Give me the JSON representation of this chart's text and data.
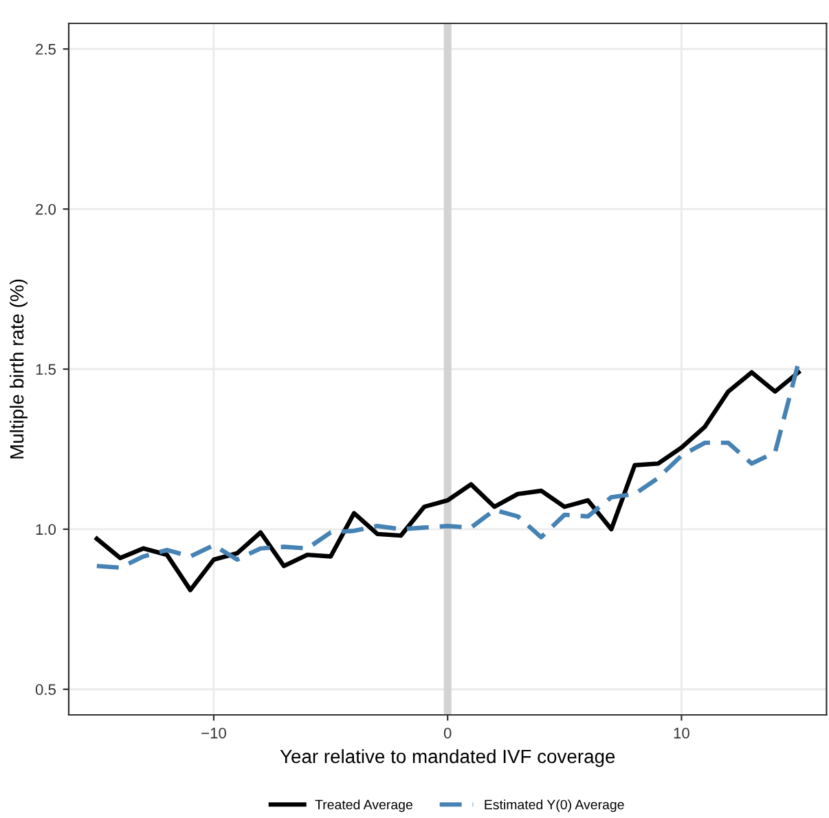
{
  "chart_data": {
    "type": "line",
    "xlabel": "Year relative to mandated IVF coverage",
    "ylabel": "Multiple birth rate (%)",
    "x": [
      -15,
      -14,
      -13,
      -12,
      -11,
      -10,
      -9,
      -8,
      -7,
      -6,
      -5,
      -4,
      -3,
      -2,
      -1,
      0,
      1,
      2,
      3,
      4,
      5,
      6,
      7,
      8,
      9,
      10,
      11,
      12,
      13,
      14,
      15
    ],
    "series": [
      {
        "name": "Treated Average",
        "color": "#000000",
        "line_style": "solid",
        "values": [
          0.97,
          0.91,
          0.94,
          0.92,
          0.81,
          0.905,
          0.925,
          0.99,
          0.885,
          0.92,
          0.915,
          1.05,
          0.985,
          0.98,
          1.07,
          1.09,
          1.14,
          1.07,
          1.11,
          1.12,
          1.07,
          1.09,
          1.0,
          1.2,
          1.205,
          1.255,
          1.32,
          1.43,
          1.49,
          1.43,
          1.49
        ]
      },
      {
        "name": "Estimated Y(0) Average",
        "color": "#4682b4",
        "line_style": "dashed",
        "values": [
          0.885,
          0.88,
          0.915,
          0.935,
          0.915,
          0.95,
          0.905,
          0.94,
          0.945,
          0.94,
          0.99,
          0.995,
          1.01,
          1.0,
          1.005,
          1.01,
          1.005,
          1.06,
          1.04,
          0.975,
          1.045,
          1.04,
          1.1,
          1.11,
          1.16,
          1.23,
          1.27,
          1.27,
          1.205,
          1.24,
          1.52
        ]
      }
    ],
    "xlim": [
      -16.2,
      16.2
    ],
    "xticks": [
      {
        "value": -10,
        "label": "−10"
      },
      {
        "value": 0,
        "label": "0"
      },
      {
        "value": 10,
        "label": "10"
      }
    ],
    "ylim": [
      0.42,
      2.58
    ],
    "yticks": [
      {
        "value": 0.5,
        "label": "0.5"
      },
      {
        "value": 1.0,
        "label": "1.0"
      },
      {
        "value": 1.5,
        "label": "1.5"
      },
      {
        "value": 2.0,
        "label": "2.0"
      },
      {
        "value": 2.5,
        "label": "2.5"
      }
    ],
    "ref_lines": [
      {
        "axis": "x",
        "value": 0,
        "color": "#d3d3d3"
      }
    ],
    "grid": true,
    "legend": "bottom"
  }
}
